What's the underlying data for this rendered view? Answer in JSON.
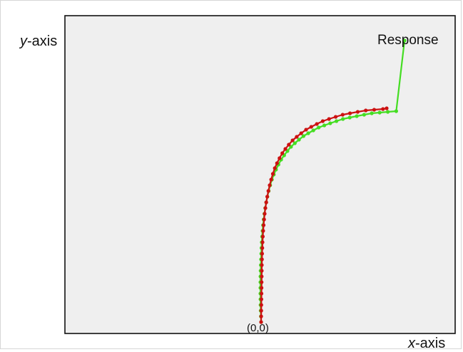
{
  "chart_data": {
    "type": "scatter",
    "title": "",
    "xlabel": {
      "var": "x",
      "suffix": "-axis"
    },
    "ylabel": {
      "var": "y",
      "suffix": "-axis"
    },
    "grid": false,
    "legend": "none",
    "annotations": {
      "origin": "(0,0)",
      "end": "Response"
    },
    "series": [
      {
        "color": "#44dd22",
        "points": [
          [
            0,
            0
          ],
          [
            -0.3,
            8
          ],
          [
            -0.6,
            16
          ],
          [
            -0.8,
            24
          ],
          [
            -0.9,
            32
          ],
          [
            -1.0,
            40
          ],
          [
            -1.0,
            48
          ],
          [
            -1.0,
            56
          ],
          [
            -0.9,
            64
          ],
          [
            -0.7,
            72
          ],
          [
            -0.4,
            80
          ],
          [
            -0.1,
            88
          ],
          [
            0.2,
            96
          ],
          [
            0.5,
            104
          ],
          [
            0.9,
            112
          ],
          [
            1.4,
            120
          ],
          [
            2.0,
            128
          ],
          [
            2.7,
            136
          ],
          [
            3.6,
            144
          ],
          [
            4.6,
            152
          ],
          [
            5.8,
            160
          ],
          [
            7.2,
            168
          ],
          [
            8.8,
            176
          ],
          [
            10.6,
            184
          ],
          [
            12.7,
            192
          ],
          [
            15.1,
            200
          ],
          [
            17.8,
            207
          ],
          [
            20.9,
            214
          ],
          [
            24.3,
            221
          ],
          [
            28.1,
            228
          ],
          [
            32.3,
            234
          ],
          [
            36.9,
            240
          ],
          [
            41.9,
            246
          ],
          [
            47.3,
            251
          ],
          [
            53.1,
            256
          ],
          [
            59.4,
            261
          ],
          [
            66.1,
            265
          ],
          [
            73.2,
            269
          ],
          [
            80.7,
            273
          ],
          [
            88.6,
            276
          ],
          [
            96.9,
            279
          ],
          [
            105.6,
            282
          ],
          [
            114.7,
            285
          ],
          [
            124.2,
            287
          ],
          [
            134.1,
            289
          ],
          [
            144.4,
            291
          ],
          [
            155.1,
            293
          ],
          [
            166.2,
            294
          ],
          [
            177.6,
            295
          ],
          [
            189.4,
            296
          ],
          [
            201.0,
            395
          ]
        ]
      },
      {
        "color": "#cc1111",
        "points": [
          [
            0,
            0
          ],
          [
            0.1,
            8
          ],
          [
            0.2,
            16
          ],
          [
            0.3,
            24
          ],
          [
            0.4,
            32
          ],
          [
            0.5,
            40
          ],
          [
            0.6,
            48
          ],
          [
            0.7,
            56
          ],
          [
            0.8,
            64
          ],
          [
            0.9,
            72
          ],
          [
            1.0,
            80
          ],
          [
            1.2,
            88
          ],
          [
            1.4,
            96
          ],
          [
            1.7,
            104
          ],
          [
            2.0,
            112
          ],
          [
            2.4,
            120
          ],
          [
            2.9,
            128
          ],
          [
            3.5,
            136
          ],
          [
            4.2,
            144
          ],
          [
            5.0,
            152
          ],
          [
            6.0,
            160
          ],
          [
            7.2,
            168
          ],
          [
            8.6,
            176
          ],
          [
            10.2,
            184
          ],
          [
            12.0,
            192
          ],
          [
            14.1,
            200
          ],
          [
            16.5,
            208
          ],
          [
            19.2,
            216
          ],
          [
            22.3,
            223
          ],
          [
            25.8,
            230
          ],
          [
            29.7,
            237
          ],
          [
            34.0,
            243
          ],
          [
            38.8,
            249
          ],
          [
            44.1,
            255
          ],
          [
            49.9,
            260
          ],
          [
            56.2,
            265
          ],
          [
            63.0,
            270
          ],
          [
            70.3,
            274
          ],
          [
            78.1,
            278
          ],
          [
            86.4,
            282
          ],
          [
            95.2,
            285
          ],
          [
            104.5,
            288
          ],
          [
            114.3,
            291
          ],
          [
            124.6,
            293
          ],
          [
            135.4,
            295
          ],
          [
            146.7,
            297
          ],
          [
            158.5,
            298
          ],
          [
            170.8,
            299
          ],
          [
            176.0,
            300
          ]
        ]
      }
    ]
  }
}
